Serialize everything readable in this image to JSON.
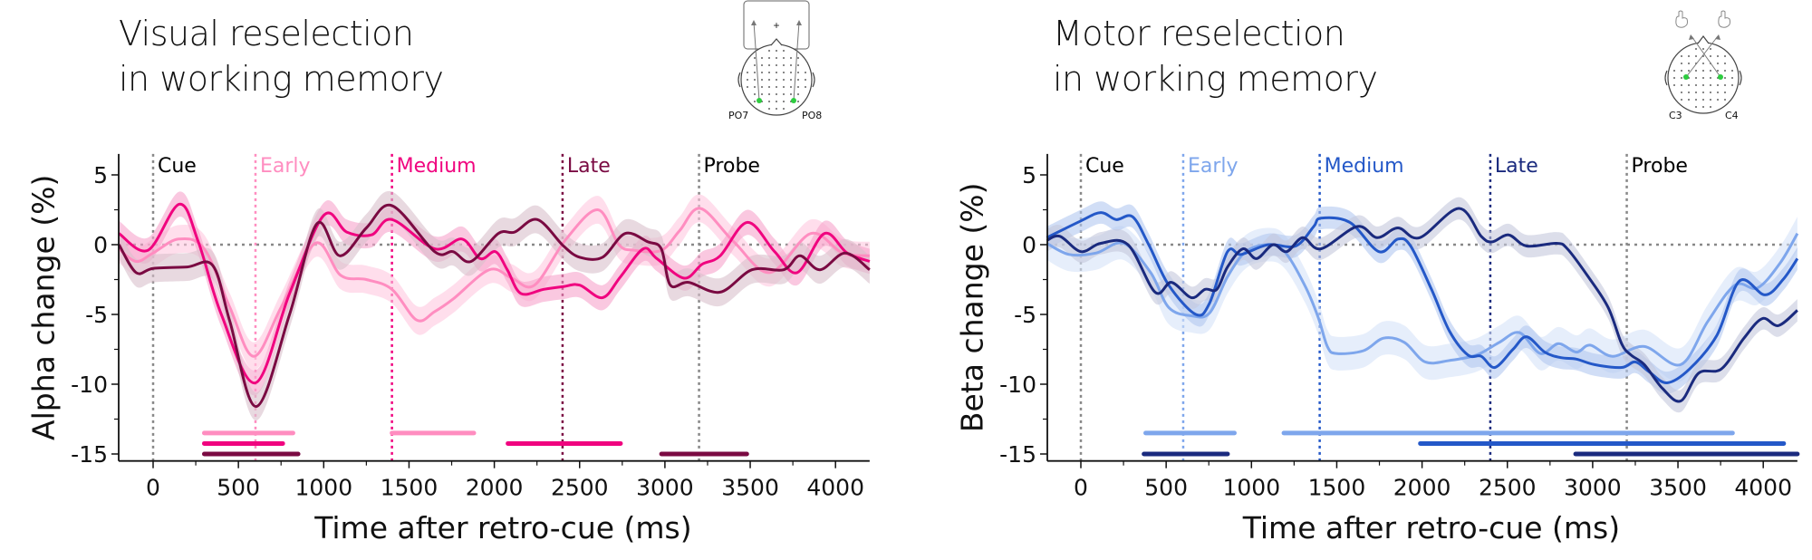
{
  "panels": {
    "visual": {
      "title_line1": "Visual reselection",
      "title_line2": "in working memory",
      "electrodes": [
        "PO7",
        "PO8"
      ]
    },
    "motor": {
      "title_line1": "Motor reselection",
      "title_line2": "in working memory",
      "electrodes": [
        "C3",
        "C4"
      ]
    }
  },
  "chart_data": [
    {
      "type": "line",
      "id": "visual",
      "title": "Visual reselection in working memory",
      "xlabel": "Time after retro-cue (ms)",
      "ylabel": "Alpha change (%)",
      "xlim": [
        -200,
        4200
      ],
      "ylim": [
        -15.5,
        6.5
      ],
      "xticks": [
        0,
        500,
        1000,
        1500,
        2000,
        2500,
        3000,
        3500,
        4000
      ],
      "xtick_labels": [
        "0",
        "500",
        "1000",
        "1500",
        "2000",
        "2500",
        "3000",
        "3500",
        "4000"
      ],
      "yticks": [
        5,
        0,
        -5,
        -10,
        -15
      ],
      "ytick_labels": [
        "5",
        "0",
        "-5",
        "-10",
        "-15"
      ],
      "grid": false,
      "events": [
        {
          "label": "Cue",
          "t": 0,
          "color": "#000000",
          "line_color": "#888888"
        },
        {
          "label": "Early",
          "t": 600,
          "color": "#ff8dc0",
          "line_color": "#ff8dc0"
        },
        {
          "label": "Medium",
          "t": 1400,
          "color": "#f0047f",
          "line_color": "#f0047f"
        },
        {
          "label": "Late",
          "t": 2400,
          "color": "#7a0a42",
          "line_color": "#7a0a42"
        },
        {
          "label": "Probe",
          "t": 3200,
          "color": "#000000",
          "line_color": "#888888"
        }
      ],
      "series": [
        {
          "name": "Early",
          "color": "#ff8dc0",
          "band_color": "#ffc8e0",
          "x": [
            -200,
            -100,
            0,
            150,
            300,
            450,
            590,
            750,
            950,
            1100,
            1250,
            1400,
            1545,
            1650,
            1758,
            1970,
            2103,
            2236,
            2421,
            2607,
            2730,
            2820,
            2979,
            3086,
            3208,
            3404,
            3616,
            3855,
            4041,
            4200
          ],
          "y": [
            -0.3,
            -1.2,
            -0.6,
            0.4,
            -0.3,
            -4.5,
            -8.0,
            -4.5,
            0.1,
            -2.2,
            -2.5,
            -3.2,
            -5.4,
            -4.8,
            -3.9,
            -1.8,
            -2.4,
            -2.9,
            0.4,
            2.5,
            0.0,
            -0.4,
            -0.4,
            1.0,
            2.6,
            0.2,
            -2.0,
            0.8,
            -0.6,
            -0.8
          ],
          "sem": 1.0,
          "significant": [
            [
              300,
              820
            ],
            [
              1400,
              1880
            ]
          ]
        },
        {
          "name": "Medium",
          "color": "#f0047f",
          "band_color": "#f7a3cb",
          "x": [
            -200,
            -30,
            154,
            265,
            400,
            600,
            800,
            1000,
            1135,
            1280,
            1400,
            1650,
            1811,
            1917,
            2007,
            2076,
            2156,
            2289,
            2406,
            2501,
            2634,
            2740,
            2873,
            2953,
            3112,
            3218,
            3324,
            3484,
            3643,
            3776,
            3935,
            4068,
            4200
          ],
          "y": [
            0.8,
            -0.4,
            2.9,
            0.2,
            -5.0,
            -9.9,
            -3.5,
            2.1,
            0.9,
            0.7,
            1.8,
            -0.3,
            0.4,
            -1.0,
            -0.5,
            -1.8,
            -3.5,
            -3.2,
            -3.0,
            -2.9,
            -3.8,
            -2.3,
            -0.3,
            -1.0,
            -2.4,
            -1.4,
            -0.8,
            1.6,
            -0.5,
            -2.0,
            0.8,
            -0.6,
            -1.2
          ],
          "sem": 0.9,
          "significant": [
            [
              300,
              760
            ],
            [
              2080,
              2740
            ]
          ]
        },
        {
          "name": "Late",
          "color": "#7a0a42",
          "band_color": "#d9bfcb",
          "x": [
            -200,
            -100,
            0,
            200,
            350,
            450,
            605,
            800,
            960,
            1094,
            1250,
            1400,
            1650,
            1758,
            1864,
            2023,
            2119,
            2252,
            2406,
            2501,
            2634,
            2767,
            2900,
            2979,
            3032,
            3139,
            3324,
            3510,
            3696,
            3792,
            3909,
            4057,
            4200
          ],
          "y": [
            0.0,
            -2.0,
            -1.7,
            -1.6,
            -1.5,
            -5.5,
            -11.6,
            -5.0,
            1.5,
            -0.8,
            1.2,
            2.8,
            -0.5,
            -0.5,
            -1.2,
            0.8,
            0.9,
            1.8,
            -0.1,
            -0.9,
            -0.9,
            0.8,
            0.2,
            -0.3,
            -2.9,
            -2.7,
            -3.4,
            -1.8,
            -1.8,
            -0.8,
            -1.8,
            -0.6,
            -1.8
          ],
          "sem": 1.0,
          "significant": [
            [
              300,
              850
            ],
            [
              2980,
              3480
            ]
          ]
        }
      ]
    },
    {
      "type": "line",
      "id": "motor",
      "title": "Motor reselection in working memory",
      "xlabel": "Time after retro-cue (ms)",
      "ylabel": "Beta change (%)",
      "xlim": [
        -200,
        4200
      ],
      "ylim": [
        -15.5,
        6.5
      ],
      "xticks": [
        0,
        500,
        1000,
        1500,
        2000,
        2500,
        3000,
        3500,
        4000
      ],
      "xtick_labels": [
        "0",
        "500",
        "1000",
        "1500",
        "2000",
        "2500",
        "3000",
        "3500",
        "4000"
      ],
      "yticks": [
        5,
        0,
        -5,
        -10,
        -15
      ],
      "ytick_labels": [
        "5",
        "0",
        "-5",
        "-10",
        "-15"
      ],
      "grid": false,
      "events": [
        {
          "label": "Cue",
          "t": 0,
          "color": "#000000",
          "line_color": "#888888"
        },
        {
          "label": "Early",
          "t": 600,
          "color": "#7ea6ec",
          "line_color": "#7ea6ec"
        },
        {
          "label": "Medium",
          "t": 1400,
          "color": "#2458c8",
          "line_color": "#2458c8"
        },
        {
          "label": "Late",
          "t": 2400,
          "color": "#1a2a7e",
          "line_color": "#1a2a7e"
        },
        {
          "label": "Probe",
          "t": 3200,
          "color": "#000000",
          "line_color": "#888888"
        }
      ],
      "series": [
        {
          "name": "Early",
          "color": "#7ea6ec",
          "band_color": "#d6e2f8",
          "x": [
            -200,
            -69,
            90,
            250,
            409,
            515,
            648,
            754,
            860,
            967,
            1099,
            1195,
            1312,
            1391,
            1445,
            1498,
            1657,
            1774,
            1896,
            2018,
            2161,
            2321,
            2453,
            2570,
            2693,
            2799,
            2905,
            2985,
            3117,
            3303,
            3516,
            3675,
            3834,
            3967,
            4100,
            4200
          ],
          "y": [
            0.1,
            -0.7,
            -0.6,
            0.1,
            -2.0,
            -4.5,
            -5.1,
            -4.9,
            -2.3,
            -0.5,
            0.0,
            -0.5,
            -2.9,
            -5.2,
            -7.3,
            -7.8,
            -7.6,
            -6.7,
            -7.0,
            -8.4,
            -8.3,
            -7.9,
            -7.0,
            -6.3,
            -7.8,
            -7.1,
            -7.7,
            -7.2,
            -8.0,
            -7.3,
            -8.6,
            -5.5,
            -2.9,
            -3.1,
            -1.3,
            0.8
          ],
          "sem": 1.2,
          "significant": [
            [
              380,
              900
            ],
            [
              1190,
              3820
            ]
          ]
        },
        {
          "name": "Medium",
          "color": "#2458c8",
          "band_color": "#b3c8f0",
          "x": [
            -200,
            0,
            117,
            207,
            303,
            398,
            515,
            674,
            754,
            860,
            940,
            1099,
            1259,
            1365,
            1407,
            1577,
            1747,
            1859,
            1933,
            2055,
            2161,
            2268,
            2347,
            2427,
            2533,
            2613,
            2719,
            2815,
            2905,
            3011,
            3170,
            3250,
            3330,
            3436,
            3569,
            3728,
            3861,
            4010,
            4116,
            4200
          ],
          "y": [
            0.5,
            1.7,
            2.3,
            1.8,
            2.0,
            0.0,
            -2.9,
            -5.0,
            -4.2,
            -0.5,
            -0.7,
            0.0,
            -0.1,
            1.3,
            1.9,
            1.6,
            -0.5,
            0.4,
            -0.1,
            -3.2,
            -6.2,
            -7.9,
            -8.0,
            -8.8,
            -7.5,
            -6.6,
            -7.7,
            -8.1,
            -8.2,
            -8.6,
            -8.8,
            -8.4,
            -9.1,
            -9.9,
            -8.9,
            -6.5,
            -2.6,
            -3.6,
            -2.5,
            -1.0
          ],
          "sem": 0.8,
          "significant": [
            [
              1990,
              4120
            ]
          ]
        },
        {
          "name": "Late",
          "color": "#1a2a7e",
          "band_color": "#c5c8dc",
          "x": [
            -200,
            -122,
            0,
            117,
            276,
            435,
            531,
            648,
            728,
            797,
            860,
            950,
            1030,
            1126,
            1206,
            1301,
            1407,
            1620,
            1737,
            1859,
            1986,
            2215,
            2347,
            2411,
            2507,
            2613,
            2788,
            2852,
            2974,
            3091,
            3170,
            3224,
            3303,
            3409,
            3516,
            3622,
            3755,
            3887,
            3994,
            4089,
            4200
          ],
          "y": [
            0.3,
            0.6,
            -0.5,
            0.1,
            0.0,
            -3.4,
            -2.7,
            -3.8,
            -3.2,
            -3.2,
            -1.6,
            -0.3,
            -1.0,
            0.0,
            -0.5,
            0.5,
            -0.3,
            1.3,
            0.5,
            1.2,
            0.5,
            2.6,
            0.6,
            0.2,
            0.7,
            -0.1,
            0.1,
            -0.3,
            -2.3,
            -4.5,
            -7.1,
            -7.9,
            -8.6,
            -10.3,
            -11.2,
            -9.2,
            -8.9,
            -6.7,
            -5.3,
            -5.8,
            -4.7
          ],
          "sem": 0.8,
          "significant": [
            [
              370,
              860
            ],
            [
              2900,
              4200
            ]
          ]
        }
      ]
    }
  ]
}
